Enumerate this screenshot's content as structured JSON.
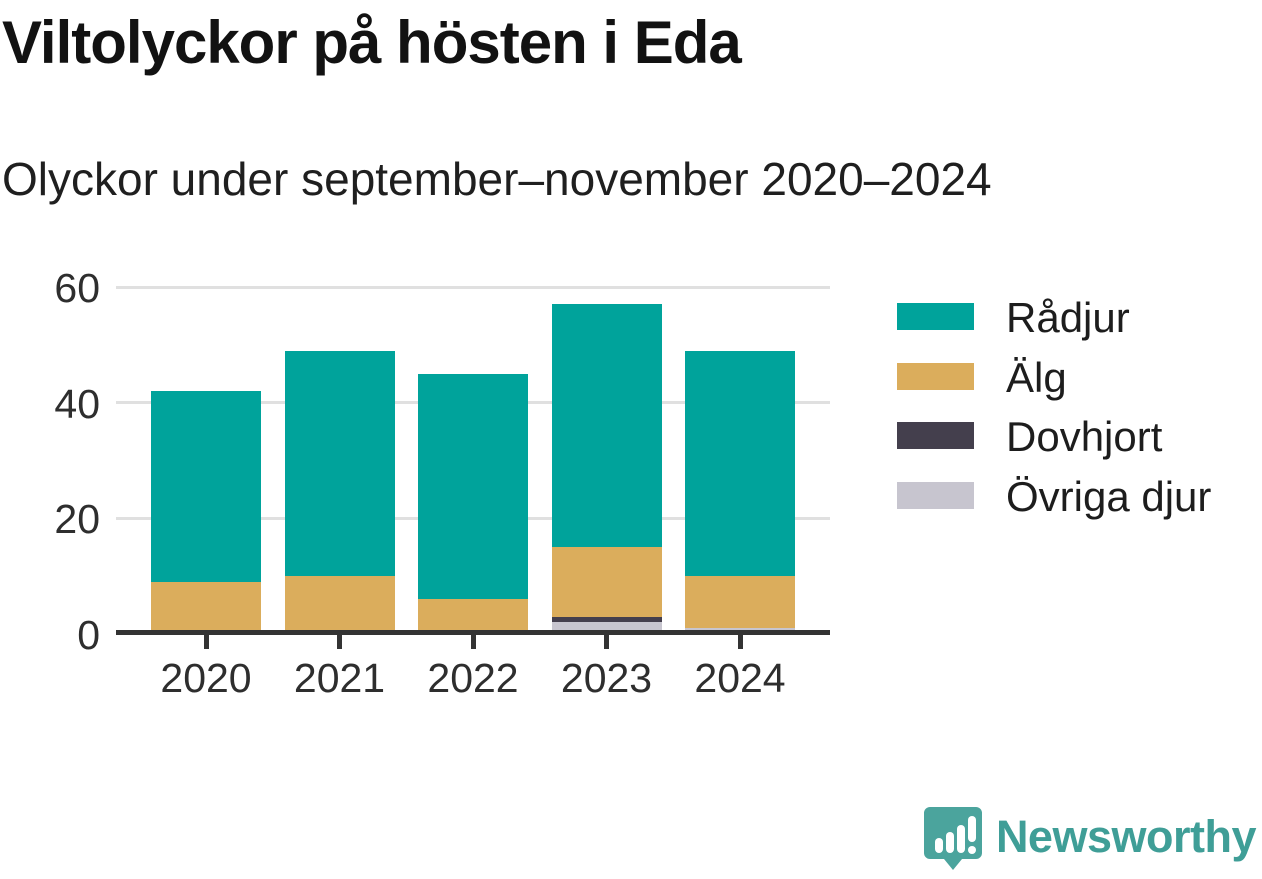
{
  "header": {
    "title": "Viltolyckor på hösten i Eda",
    "subtitle": "Olyckor under september–november 2020–2024"
  },
  "chart_data": {
    "type": "bar",
    "stacked": true,
    "title": "Viltolyckor på hösten i Eda",
    "subtitle": "Olyckor under september–november 2020–2024",
    "categories": [
      "2020",
      "2021",
      "2022",
      "2023",
      "2024"
    ],
    "series": [
      {
        "name": "Rådjur",
        "color": "#00a39b",
        "values": [
          33,
          39,
          39,
          42,
          39
        ]
      },
      {
        "name": "Älg",
        "color": "#dbad5c",
        "values": [
          9,
          10,
          6,
          12,
          9
        ]
      },
      {
        "name": "Dovhjort",
        "color": "#443f4d",
        "values": [
          0,
          0,
          0,
          1,
          0
        ]
      },
      {
        "name": "Övriga djur",
        "color": "#c7c5cf",
        "values": [
          0,
          0,
          0,
          2,
          1
        ]
      }
    ],
    "stack_order_bottom_to_top": [
      "Övriga djur",
      "Dovhjort",
      "Älg",
      "Rådjur"
    ],
    "totals": [
      42,
      49,
      45,
      57,
      49
    ],
    "xlabel": "",
    "ylabel": "",
    "ylim": [
      0,
      60
    ],
    "yticks": [
      0,
      20,
      40,
      60
    ],
    "grid": true,
    "legend_position": "right"
  },
  "colors": {
    "axis": "#333333",
    "gridline": "#e0e0e0",
    "tick_text": "#2e2e2e",
    "brand_teal": "#3f9e97",
    "logo_teal": "#4ba49d"
  },
  "footer": {
    "brand": "Newsworthy"
  }
}
